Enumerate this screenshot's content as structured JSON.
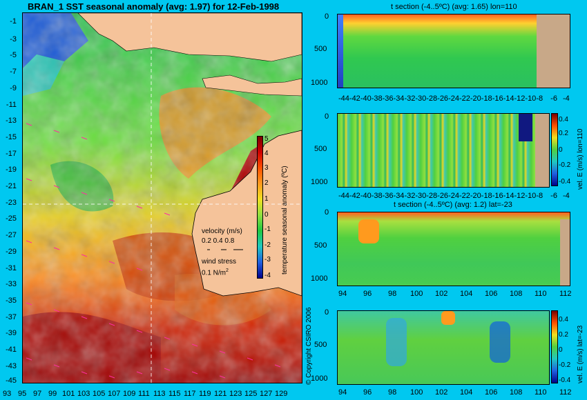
{
  "map": {
    "title": "BRAN_1 SST seasonal anomaly (avg: 1.97) for 12-Feb-1998",
    "lat_ticks": [
      "-1",
      "-3",
      "-5",
      "-7",
      "-9",
      "-11",
      "-13",
      "-15",
      "-17",
      "-19",
      "-21",
      "-23",
      "-25",
      "-27",
      "-29",
      "-31",
      "-33",
      "-35",
      "-37",
      "-39",
      "-41",
      "-43",
      "-45"
    ],
    "lon_ticks": [
      "93",
      "95",
      "97",
      "99",
      "101",
      "103",
      "105",
      "107",
      "109",
      "111",
      "113",
      "115",
      "117",
      "119",
      "121",
      "123",
      "125",
      "127",
      "129"
    ],
    "colorbar_ticks": [
      "5",
      "4",
      "3",
      "2",
      "1",
      "0",
      "-1",
      "-2",
      "-3",
      "-4"
    ],
    "colorbar_label": "temperature seasonal anomaly (ºC)",
    "velocity_label": "velocity (m/s)",
    "velocity_scale": "0.2 0.4 0.8",
    "wind_label": "wind stress",
    "wind_scale": "0.1 N/m",
    "wind_scale_exp": "2",
    "copyright": "© Copyright CSIRO 2006"
  },
  "panels": [
    {
      "title": "t section (-4..5ºC) (avg: 1.65) lon=110",
      "x_ticks": [
        "-44",
        "-42",
        "-40",
        "-38",
        "-36",
        "-34",
        "-32",
        "-30",
        "-28",
        "-26",
        "-24",
        "-22",
        "-20",
        "-18",
        "-16",
        "-14",
        "-12",
        "-10",
        "-8",
        "-6",
        "-4"
      ],
      "y_ticks": [
        "0",
        "500",
        "1000"
      ]
    },
    {
      "title": "",
      "x_ticks": [
        "-44",
        "-42",
        "-40",
        "-38",
        "-36",
        "-34",
        "-32",
        "-30",
        "-28",
        "-26",
        "-24",
        "-22",
        "-20",
        "-18",
        "-16",
        "-14",
        "-12",
        "-10",
        "-8",
        "-6",
        "-4"
      ],
      "y_ticks": [
        "0",
        "500",
        "1000"
      ],
      "cb_ticks": [
        "0.4",
        "0.2",
        "0",
        "-0.2",
        "-0.4"
      ],
      "cb_label": "vel. E (m/s) lon=110"
    },
    {
      "title": "t section (-4..5ºC) (avg: 1.2) lat=-23",
      "x_ticks": [
        "94",
        "96",
        "98",
        "100",
        "102",
        "104",
        "106",
        "108",
        "110",
        "112"
      ],
      "y_ticks": [
        "0",
        "500",
        "1000"
      ]
    },
    {
      "title": "",
      "x_ticks": [
        "94",
        "96",
        "98",
        "100",
        "102",
        "104",
        "106",
        "108",
        "110",
        "112"
      ],
      "y_ticks": [
        "0",
        "500",
        "1000"
      ],
      "cb_ticks": [
        "0.4",
        "0.2",
        "0",
        "-0.2",
        "-0.4"
      ],
      "cb_label": "vel. E (m/s) lat=-23"
    }
  ],
  "colors": {
    "background": "#00c8f0",
    "land": "#f5c39a",
    "section_land": "#c8a888"
  }
}
